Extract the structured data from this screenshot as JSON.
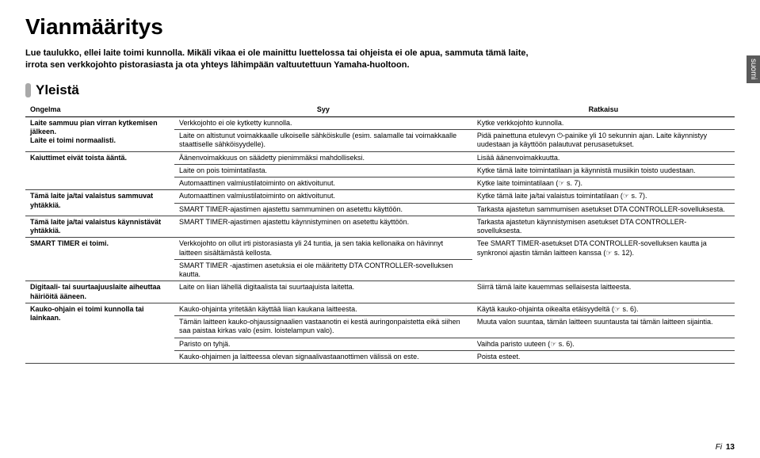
{
  "title": "Vianmääritys",
  "intro": "Lue taulukko, ellei laite toimi kunnolla. Mikäli vikaa ei ole mainittu luettelossa tai ohjeista ei ole apua, sammuta tämä laite, irrota sen verkkojohto pistorasiasta ja ota yhteys lähimpään valtuutettuun Yamaha-huoltoon.",
  "sideTab": "suomi",
  "sectionTitle": "Yleistä",
  "columns": {
    "problem": "Ongelma",
    "cause": "Syy",
    "solution": "Ratkaisu"
  },
  "rows": [
    {
      "problem": "Laite sammuu pian virran kytkemisen jälkeen.\nLaite ei toimi normaalisti.",
      "cells": [
        {
          "cause": "Verkkojohto ei ole kytketty kunnolla.",
          "solution": "Kytke verkkojohto kunnolla."
        },
        {
          "cause": "Laite on altistunut voimakkaalle ulkoiselle sähköiskulle (esim. salamalle tai voimakkaalle staattiselle sähköisyydelle).",
          "solution": "Pidä painettuna etulevyn ⏻-painike yli 10 sekunnin ajan. Laite käynnistyy uudestaan ja käyttöön palautuvat perusasetukset."
        }
      ]
    },
    {
      "problem": "Kaiuttimet eivät toista ääntä.",
      "cells": [
        {
          "cause": "Äänenvoimakkuus on säädetty pienimmäksi mahdolliseksi.",
          "solution": "Lisää äänenvoimakkuutta."
        },
        {
          "cause": "Laite on pois toimintatilasta.",
          "solution": "Kytke tämä laite toimintatilaan ja käynnistä musiikin toisto uudestaan."
        },
        {
          "cause": "Automaattinen valmiustilatoiminto on aktivoitunut.",
          "solution": "Kytke laite toimintatilaan (☞ s. 7)."
        }
      ]
    },
    {
      "problem": "Tämä laite ja/tai valaistus sammuvat yhtäkkiä.",
      "cells": [
        {
          "cause": "Automaattinen valmiustilatoiminto on aktivoitunut.",
          "solution": "Kytke tämä laite ja/tai valaistus toimintatilaan (☞ s. 7)."
        },
        {
          "cause": "SMART TIMER-ajastimen ajastettu sammuminen on asetettu käyttöön.",
          "solution": "Tarkasta ajastetun sammumisen asetukset DTA CONTROLLER-sovelluksesta."
        }
      ]
    },
    {
      "problem": "Tämä laite ja/tai valaistus käynnistävät yhtäkkiä.",
      "cells": [
        {
          "cause": "SMART TIMER-ajastimen ajastettu käynnistyminen on asetettu käyttöön.",
          "solution": "Tarkasta ajastetun käynnistymisen asetukset DTA CONTROLLER-sovelluksesta."
        }
      ]
    },
    {
      "problem": "SMART TIMER ei toimi.",
      "cells": [
        {
          "cause": "Verkkojohto on ollut irti pistorasiasta yli 24 tuntia, ja sen takia kellonaika on hävinnyt laitteen sisältämästä kellosta.",
          "solution": "Tee SMART TIMER-asetukset DTA CONTROLLER-sovelluksen kautta ja synkronoi ajastin tämän laitteen kanssa (☞ s. 12)."
        },
        {
          "cause": "SMART TIMER -ajastimen asetuksia ei ole määritetty DTA CONTROLLER-sovelluksen kautta.",
          "solution": ""
        }
      ]
    },
    {
      "problem": "Digitaali- tai suurtaajuuslaite aiheuttaa häiriöitä ääneen.",
      "cells": [
        {
          "cause": "Laite on liian lähellä digitaalista tai suurtaajuista laitetta.",
          "solution": "Siirrä tämä laite kauemmas sellaisesta laitteesta."
        }
      ]
    },
    {
      "problem": "Kauko-ohjain ei toimi kunnolla tai lainkaan.",
      "cells": [
        {
          "cause": "Kauko-ohjainta yritetään käyttää liian kaukana laitteesta.",
          "solution": "Käytä kauko-ohjainta oikealta etäisyydeltä (☞ s. 6)."
        },
        {
          "cause": "Tämän laitteen kauko-ohjaussignaalien vastaanotin ei kestä auringonpaistetta eikä siihen saa paistaa kirkas valo (esim. loistelampun valo).",
          "solution": "Muuta valon suuntaa, tämän laitteen suuntausta tai tämän laitteen sijaintia."
        },
        {
          "cause": "Paristo on tyhjä.",
          "solution": "Vaihda paristo uuteen (☞ s. 6)."
        },
        {
          "cause": "Kauko-ohjaimen ja laitteessa olevan signaalivastaanottimen välissä on este.",
          "solution": "Poista esteet."
        }
      ]
    }
  ],
  "footer": {
    "prefix": "Fi",
    "page": "13"
  }
}
